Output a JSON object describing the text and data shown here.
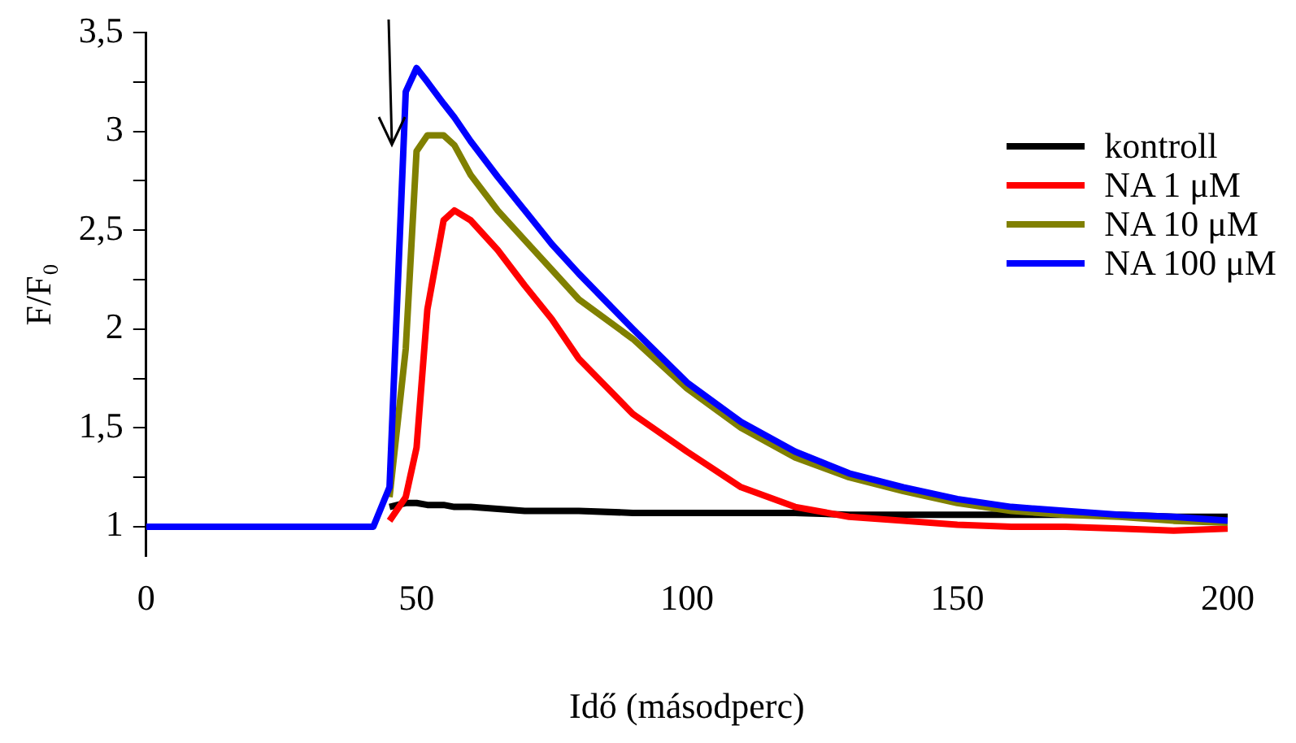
{
  "chart_data": {
    "type": "line",
    "xlabel": "Idő (másodperc)",
    "ylabel": "F/F₀",
    "x": [
      0,
      5,
      10,
      15,
      20,
      25,
      30,
      35,
      40,
      42,
      45,
      48,
      50,
      52,
      55,
      57,
      60,
      65,
      70,
      75,
      80,
      90,
      100,
      110,
      120,
      130,
      140,
      150,
      160,
      170,
      180,
      190,
      200
    ],
    "series": [
      {
        "name": " kontroll",
        "color": "#000000",
        "values": [
          null,
          null,
          null,
          null,
          null,
          null,
          null,
          null,
          null,
          null,
          1.1,
          1.12,
          1.12,
          1.11,
          1.11,
          1.1,
          1.1,
          1.09,
          1.08,
          1.08,
          1.08,
          1.07,
          1.07,
          1.07,
          1.07,
          1.06,
          1.06,
          1.06,
          1.06,
          1.06,
          1.06,
          1.05,
          1.05
        ]
      },
      {
        "name": "NA 1 μM",
        "color": "#ff0000",
        "values": [
          null,
          null,
          null,
          null,
          null,
          null,
          null,
          null,
          null,
          null,
          1.03,
          1.15,
          1.4,
          2.1,
          2.55,
          2.6,
          2.55,
          2.4,
          2.22,
          2.05,
          1.85,
          1.57,
          1.38,
          1.2,
          1.1,
          1.05,
          1.03,
          1.01,
          1,
          1,
          0.99,
          0.98,
          0.99
        ]
      },
      {
        "name": "NA 10 μM",
        "color": "#808000",
        "values": [
          null,
          null,
          null,
          null,
          null,
          null,
          null,
          null,
          null,
          null,
          1.15,
          1.9,
          2.9,
          2.98,
          2.98,
          2.93,
          2.78,
          2.6,
          2.45,
          2.3,
          2.15,
          1.95,
          1.7,
          1.5,
          1.35,
          1.25,
          1.18,
          1.12,
          1.08,
          1.06,
          1.05,
          1.03,
          1.02
        ]
      },
      {
        "name": "NA 100 μM",
        "color": "#0000ff",
        "values": [
          1,
          1,
          1,
          1,
          1,
          1,
          1,
          1,
          1,
          1,
          1.2,
          3.2,
          3.32,
          3.25,
          3.14,
          3.07,
          2.95,
          2.77,
          2.6,
          2.43,
          2.28,
          2,
          1.73,
          1.53,
          1.38,
          1.27,
          1.2,
          1.14,
          1.1,
          1.08,
          1.06,
          1.05,
          1.03
        ]
      }
    ],
    "xlim": [
      0,
      200
    ],
    "xticks": [
      0,
      50,
      100,
      150,
      200
    ],
    "ylim": [
      0.85,
      3.5
    ],
    "yticks": [
      {
        "value": 1,
        "label": "1"
      },
      {
        "value": 1.25,
        "label": null
      },
      {
        "value": 1.5,
        "label": "1,5"
      },
      {
        "value": 1.75,
        "label": null
      },
      {
        "value": 2,
        "label": "2"
      },
      {
        "value": 2.25,
        "label": null
      },
      {
        "value": 2.5,
        "label": "2,5"
      },
      {
        "value": 2.75,
        "label": null
      },
      {
        "value": 3,
        "label": "3"
      },
      {
        "value": 3.25,
        "label": null
      },
      {
        "value": 3.5,
        "label": "3,5"
      }
    ],
    "legend": "top right",
    "grid": false,
    "marker": "none",
    "line_style": "solid"
  }
}
